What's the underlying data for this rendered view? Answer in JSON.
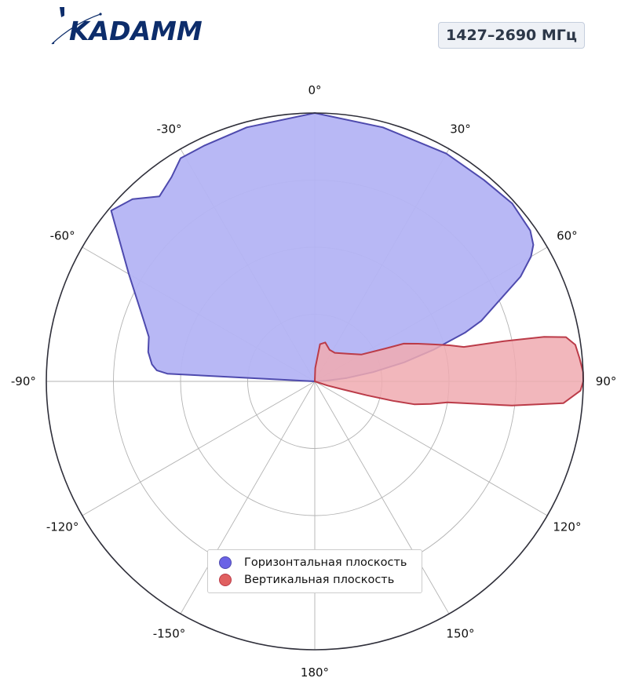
{
  "logo": {
    "text": "KADAMM"
  },
  "frequency_badge": "1427–2690 МГц",
  "chart_data": {
    "type": "polar-area",
    "theta_direction": "clockwise",
    "theta_zero": "top",
    "angle_ticks": [
      "0°",
      "30°",
      "60°",
      "90°",
      "120°",
      "150°",
      "180°",
      "-150°",
      "-120°",
      "-90°",
      "-60°",
      "-30°"
    ],
    "angle_tick_degrees": [
      0,
      30,
      60,
      90,
      120,
      150,
      180,
      -150,
      -120,
      -90,
      -60,
      -30
    ],
    "rlim": [
      0,
      1
    ],
    "rgrid": [
      0.25,
      0.5,
      0.75,
      1.0
    ],
    "rgrid_labels_shown": false,
    "grid": true,
    "legend": "bottom-center",
    "series": [
      {
        "name": "Горизонтальная плоскость",
        "color": "#6b63e6",
        "fill": "#b4b4f4",
        "stroke": "#4e4aae",
        "points": [
          [
            -90,
            0.0
          ],
          [
            -87,
            0.55
          ],
          [
            -86,
            0.59
          ],
          [
            -85,
            0.6
          ],
          [
            -84,
            0.61
          ],
          [
            -80,
            0.63
          ],
          [
            -75,
            0.64
          ],
          [
            -70,
            0.68
          ],
          [
            -60,
            0.8
          ],
          [
            -50,
            0.99
          ],
          [
            -45,
            0.96
          ],
          [
            -40,
            0.9
          ],
          [
            -35,
            0.93
          ],
          [
            -31,
            0.97
          ],
          [
            -25,
            0.97
          ],
          [
            -15,
            0.98
          ],
          [
            0,
            1.0
          ],
          [
            15,
            0.98
          ],
          [
            30,
            0.98
          ],
          [
            40,
            0.98
          ],
          [
            48,
            0.99
          ],
          [
            55,
            0.98
          ],
          [
            58,
            0.96
          ],
          [
            60,
            0.93
          ],
          [
            63,
            0.86
          ],
          [
            66,
            0.76
          ],
          [
            70,
            0.66
          ],
          [
            72,
            0.59
          ],
          [
            75,
            0.46
          ],
          [
            78,
            0.34
          ],
          [
            81,
            0.22
          ],
          [
            84,
            0.12
          ],
          [
            87,
            0.04
          ],
          [
            90,
            0.0
          ]
        ]
      },
      {
        "name": "Вертикальная плоскость",
        "color": "#e06060",
        "fill": "#f0aab0",
        "stroke": "#bb3b48",
        "points": [
          [
            0,
            0.0
          ],
          [
            2,
            0.05
          ],
          [
            8,
            0.14
          ],
          [
            15,
            0.15
          ],
          [
            25,
            0.13
          ],
          [
            35,
            0.13
          ],
          [
            50,
            0.16
          ],
          [
            60,
            0.2
          ],
          [
            65,
            0.29
          ],
          [
            67,
            0.36
          ],
          [
            70,
            0.41
          ],
          [
            73,
            0.47
          ],
          [
            75,
            0.52
          ],
          [
            77,
            0.57
          ],
          [
            78,
            0.72
          ],
          [
            79,
            0.87
          ],
          [
            80,
            0.95
          ],
          [
            82,
            0.98
          ],
          [
            85,
            0.99
          ],
          [
            88,
            1.0
          ],
          [
            90,
            1.0
          ],
          [
            92,
            0.99
          ],
          [
            95,
            0.93
          ],
          [
            97,
            0.74
          ],
          [
            99,
            0.5
          ],
          [
            101,
            0.44
          ],
          [
            103,
            0.38
          ],
          [
            104,
            0.3
          ],
          [
            105,
            0.2
          ],
          [
            106,
            0.11
          ],
          [
            108,
            0.05
          ],
          [
            112,
            0.0
          ]
        ]
      }
    ]
  }
}
